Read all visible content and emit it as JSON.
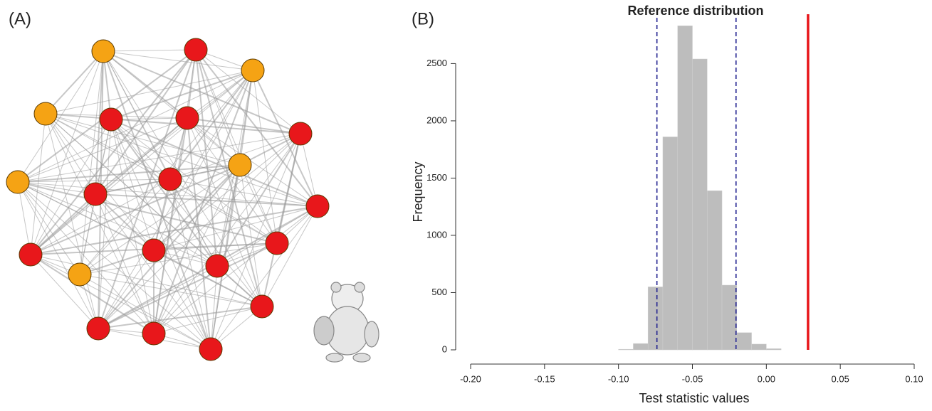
{
  "panel_labels": [
    "(A)",
    "(B)"
  ],
  "chart_data": {
    "type": "histogram",
    "title": "Reference distribution",
    "x_label": "Test statistic values",
    "y_label": "Frequency",
    "bins": [
      -0.1,
      -0.09,
      -0.08,
      -0.07,
      -0.06,
      -0.05,
      -0.04,
      -0.03,
      -0.02,
      -0.01,
      0.0,
      0.01
    ],
    "values": [
      5,
      55,
      550,
      1860,
      2830,
      2540,
      1390,
      565,
      150,
      50,
      10
    ],
    "color": "#bdbdbd",
    "xlim": [
      -0.2,
      0.1
    ],
    "xticks": [
      {
        "value": -0.2,
        "label": "-0.20"
      },
      {
        "value": -0.15,
        "label": "-0.15"
      },
      {
        "value": -0.1,
        "label": "-0.10"
      },
      {
        "value": -0.05,
        "label": "-0.05"
      },
      {
        "value": 0,
        "label": "0.00"
      },
      {
        "value": 0.05,
        "label": "0.05"
      },
      {
        "value": 0.1,
        "label": "0.10"
      }
    ],
    "ylim": [
      0,
      2900
    ],
    "yticks": [
      0,
      500,
      1000,
      1500,
      2000,
      2500
    ],
    "reference_lines": [
      {
        "value": -0.074,
        "color": "#1f1f8f",
        "style": "dashed"
      },
      {
        "value": -0.0205,
        "color": "#1f1f8f",
        "style": "dashed"
      },
      {
        "value": 0.0282,
        "color": "#e8171b",
        "style": "solid"
      }
    ]
  }
}
